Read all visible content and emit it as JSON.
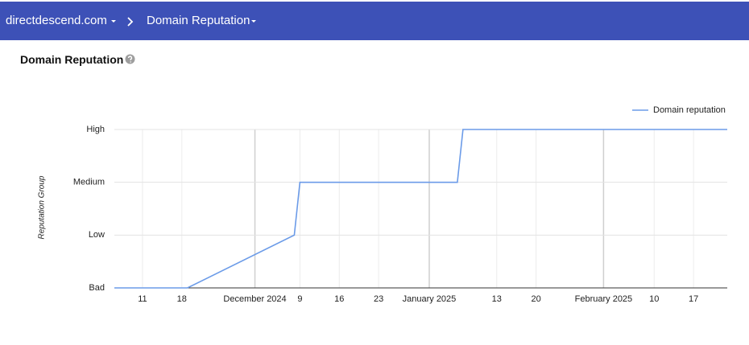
{
  "header": {
    "site": "directdescend.com",
    "page": "Domain Reputation"
  },
  "card": {
    "title": "Domain Reputation"
  },
  "chart_data": {
    "type": "line",
    "y_label": "Reputation Group",
    "x": [
      "2024-11-06",
      "2024-11-19",
      "2024-12-08",
      "2024-12-09",
      "2025-01-06",
      "2025-01-07",
      "2025-02-23"
    ],
    "series": [
      {
        "name": "Domain reputation",
        "color": "#6b9be8",
        "values": [
          0,
          0,
          1,
          2,
          2,
          3,
          3
        ]
      }
    ],
    "xlim": [
      "2024-11-06",
      "2025-02-23"
    ],
    "xticks": [
      {
        "value": "2024-11-11",
        "label": "11"
      },
      {
        "value": "2024-11-18",
        "label": "18"
      },
      {
        "value": "2024-12-01",
        "label": "December 2024"
      },
      {
        "value": "2024-12-09",
        "label": "9"
      },
      {
        "value": "2024-12-16",
        "label": "16"
      },
      {
        "value": "2024-12-23",
        "label": "23"
      },
      {
        "value": "2025-01-01",
        "label": "January 2025"
      },
      {
        "value": "2025-01-13",
        "label": "13"
      },
      {
        "value": "2025-01-20",
        "label": "20"
      },
      {
        "value": "2025-02-01",
        "label": "February 2025"
      },
      {
        "value": "2025-02-10",
        "label": "10"
      },
      {
        "value": "2025-02-17",
        "label": "17"
      }
    ],
    "ylim": [
      0,
      3
    ],
    "yticks": [
      {
        "value": 0,
        "label": "Bad"
      },
      {
        "value": 1,
        "label": "Low"
      },
      {
        "value": 2,
        "label": "Medium"
      },
      {
        "value": 3,
        "label": "High"
      }
    ],
    "grid": true,
    "legend": "top-right"
  }
}
